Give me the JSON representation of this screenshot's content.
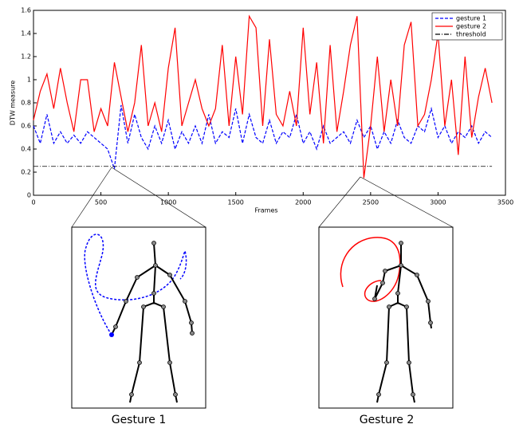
{
  "chart_data": {
    "type": "line",
    "x_label": "Frames",
    "y_label": "DTW measure",
    "x": [
      0,
      50,
      100,
      150,
      200,
      250,
      300,
      350,
      400,
      450,
      500,
      550,
      600,
      650,
      700,
      750,
      800,
      850,
      900,
      950,
      1000,
      1050,
      1100,
      1150,
      1200,
      1250,
      1300,
      1350,
      1400,
      1450,
      1500,
      1550,
      1600,
      1650,
      1700,
      1750,
      1800,
      1850,
      1900,
      1950,
      2000,
      2050,
      2100,
      2150,
      2200,
      2250,
      2300,
      2350,
      2400,
      2450,
      2500,
      2550,
      2600,
      2650,
      2700,
      2750,
      2800,
      2850,
      2900,
      2950,
      3000,
      3050,
      3100,
      3150,
      3200,
      3250,
      3300,
      3350,
      3400
    ],
    "series": [
      {
        "name": "gesture 1",
        "color": "#0000ff",
        "dash": "4,2",
        "values": [
          0.6,
          0.45,
          0.7,
          0.45,
          0.55,
          0.45,
          0.52,
          0.45,
          0.55,
          0.5,
          0.45,
          0.4,
          0.23,
          0.78,
          0.45,
          0.7,
          0.5,
          0.4,
          0.6,
          0.45,
          0.65,
          0.4,
          0.55,
          0.45,
          0.6,
          0.45,
          0.7,
          0.45,
          0.55,
          0.5,
          0.75,
          0.45,
          0.7,
          0.5,
          0.45,
          0.65,
          0.45,
          0.55,
          0.5,
          0.7,
          0.45,
          0.55,
          0.4,
          0.6,
          0.45,
          0.5,
          0.55,
          0.45,
          0.65,
          0.5,
          0.6,
          0.4,
          0.55,
          0.45,
          0.65,
          0.5,
          0.45,
          0.6,
          0.55,
          0.75,
          0.5,
          0.6,
          0.45,
          0.55,
          0.5,
          0.6,
          0.45,
          0.55,
          0.5
        ]
      },
      {
        "name": "gesture 2",
        "color": "#ff0000",
        "dash": "",
        "values": [
          0.65,
          0.9,
          1.05,
          0.75,
          1.1,
          0.8,
          0.55,
          1.0,
          1.0,
          0.55,
          0.75,
          0.6,
          1.15,
          0.85,
          0.55,
          0.8,
          1.3,
          0.6,
          0.8,
          0.55,
          1.1,
          1.45,
          0.6,
          0.8,
          1.0,
          0.75,
          0.6,
          0.75,
          1.3,
          0.6,
          1.2,
          0.7,
          1.55,
          1.45,
          0.6,
          1.35,
          0.7,
          0.6,
          0.9,
          0.6,
          1.45,
          0.7,
          1.15,
          0.45,
          1.3,
          0.55,
          0.9,
          1.3,
          1.55,
          0.15,
          0.6,
          1.2,
          0.55,
          1.0,
          0.6,
          1.3,
          1.5,
          0.6,
          0.7,
          1.0,
          1.4,
          0.6,
          1.0,
          0.35,
          1.2,
          0.5,
          0.85,
          1.1,
          0.8
        ]
      }
    ],
    "threshold": {
      "name": "threshold",
      "value": 0.25,
      "color": "#000000"
    },
    "xlim": [
      0,
      3500
    ],
    "xticks": [
      0,
      500,
      1000,
      1500,
      2000,
      2500,
      3000,
      3500
    ],
    "ylim": [
      0,
      1.6
    ],
    "yticks": [
      0,
      0.2,
      0.4,
      0.6,
      0.8,
      1,
      1.2,
      1.4,
      1.6
    ],
    "legend": "upper right"
  },
  "insets": [
    {
      "label": "Gesture 1"
    },
    {
      "label": "Gesture 2"
    }
  ]
}
